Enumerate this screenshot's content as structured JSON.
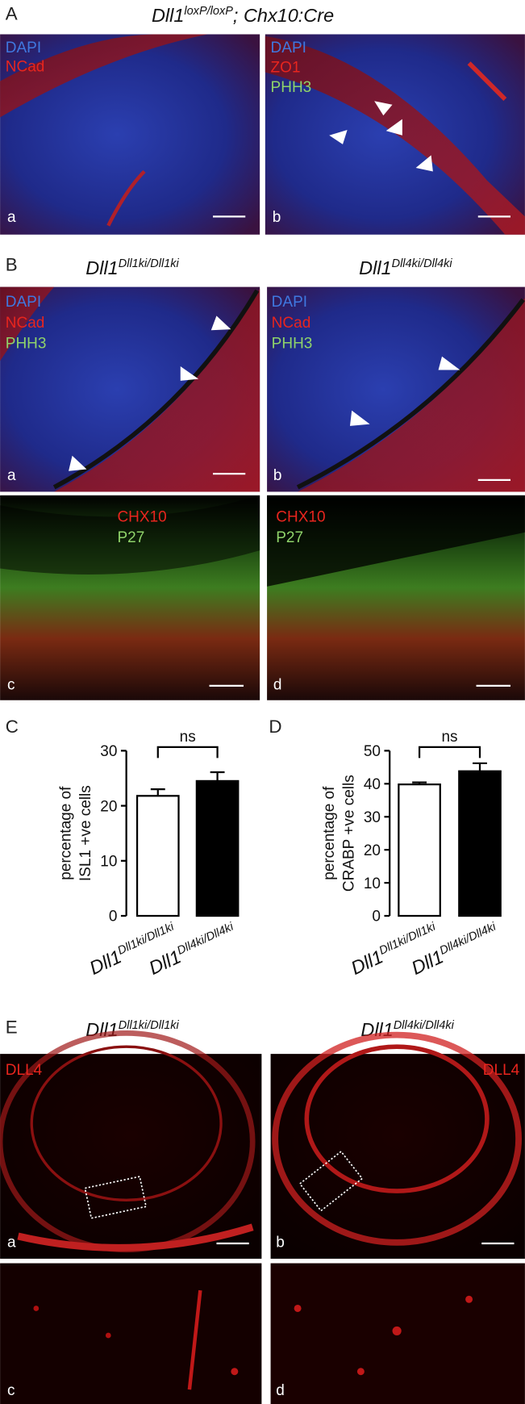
{
  "figure": {
    "A": {
      "label": "A",
      "title": {
        "gene": "Dll1",
        "sup": "loxP/loxP",
        "rest": "; Chx10:Cre"
      },
      "a": {
        "markers": [
          "DAPI",
          "NCad"
        ],
        "letter": "a"
      },
      "b": {
        "markers": [
          "DAPI",
          "ZO1",
          "PHH3"
        ],
        "letter": "b"
      }
    },
    "B": {
      "label": "B",
      "titles": [
        {
          "gene": "Dll1",
          "sup": "Dll1ki/Dll1ki"
        },
        {
          "gene": "Dll1",
          "sup": "Dll4ki/Dll4ki"
        }
      ],
      "a": {
        "markers": [
          "DAPI",
          "NCad",
          "PHH3"
        ],
        "letter": "a"
      },
      "b": {
        "markers": [
          "DAPI",
          "NCad",
          "PHH3"
        ],
        "letter": "b"
      },
      "c": {
        "markers": [
          "CHX10",
          "P27"
        ],
        "letter": "c"
      },
      "d": {
        "markers": [
          "CHX10",
          "P27"
        ],
        "letter": "d"
      }
    },
    "E": {
      "label": "E",
      "titles": [
        {
          "gene": "Dll1",
          "sup": "Dll1ki/Dll1ki"
        },
        {
          "gene": "Dll1",
          "sup": "Dll4ki/Dll4ki"
        }
      ],
      "a": {
        "markers": [
          "DLL4"
        ],
        "letter": "a"
      },
      "b": {
        "markers": [
          "DLL4"
        ],
        "letter": "b"
      },
      "c": {
        "letter": "c"
      },
      "d": {
        "letter": "d"
      }
    }
  },
  "chart_data": [
    {
      "type": "bar",
      "label": "C",
      "y_label": [
        "percentage of",
        "ISL1 +ve cells"
      ],
      "categories": [
        "Dll1",
        "Dll1"
      ],
      "category_superscripts": [
        "Dll1ki/Dll1ki",
        "Dll4ki/Dll4ki"
      ],
      "values": [
        21.8,
        24.5
      ],
      "errors": [
        1.2,
        1.6
      ],
      "colors": [
        "#ffffff",
        "#000000"
      ],
      "ylim": [
        0,
        30
      ],
      "yticks": [
        0,
        10,
        20,
        30
      ],
      "annotation": "ns"
    },
    {
      "type": "bar",
      "label": "D",
      "y_label": [
        "percentage of",
        "CRABP +ve cells"
      ],
      "categories": [
        "Dll1",
        "Dll1"
      ],
      "category_superscripts": [
        "Dll1ki/Dll1ki",
        "Dll4ki/Dll4ki"
      ],
      "values": [
        39.8,
        43.8
      ],
      "errors": [
        0.6,
        2.4
      ],
      "colors": [
        "#ffffff",
        "#000000"
      ],
      "ylim": [
        0,
        50
      ],
      "yticks": [
        0,
        10,
        20,
        30,
        40,
        50
      ],
      "annotation": "ns"
    }
  ]
}
